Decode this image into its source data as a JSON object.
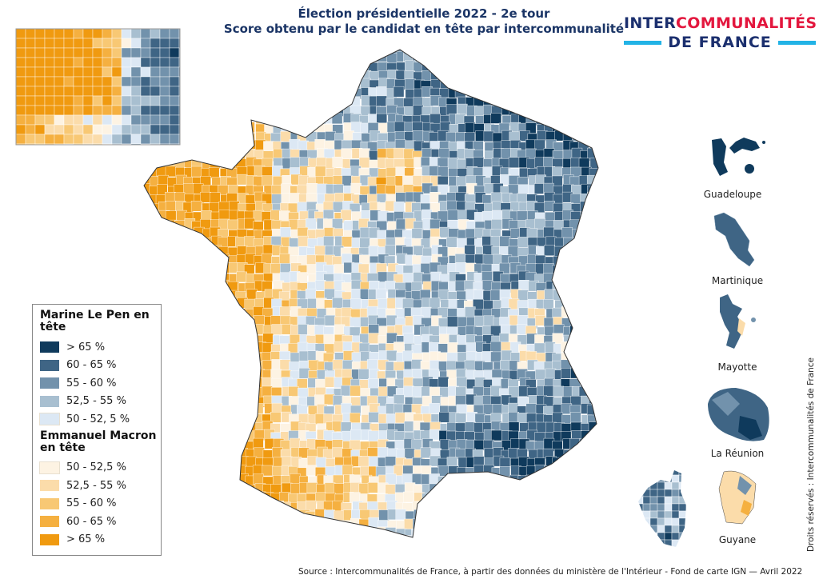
{
  "title": {
    "line1": "Élection présidentielle 2022 - 2e tour",
    "line2": "Score obtenu par le candidat en tête par intercommunalité"
  },
  "logo": {
    "part1": "INTER",
    "part2": "COMMUNALITÉS",
    "line2": "DE FRANCE",
    "colors": {
      "navy": "#1b2f6e",
      "red": "#e3173e",
      "cyan": "#22b3e6"
    }
  },
  "legend": {
    "lepen_title": "Marine Le Pen en tête",
    "lepen_items": [
      {
        "label": "> 65 %",
        "color": "#0f3a5c"
      },
      {
        "label": "60 - 65 %",
        "color": "#3f6585"
      },
      {
        "label": "55 - 60 %",
        "color": "#7292ac"
      },
      {
        "label": "52,5 - 55 %",
        "color": "#a8bfd0"
      },
      {
        "label": "50 - 52, 5 %",
        "color": "#dce8f4"
      }
    ],
    "macron_title": "Emmanuel Macron en tête",
    "macron_items": [
      {
        "label": "50 - 52,5 %",
        "color": "#fdf3e3"
      },
      {
        "label": "52,5 - 55 %",
        "color": "#fbdcaa"
      },
      {
        "label": "55 - 60 %",
        "color": "#f8c874"
      },
      {
        "label": "60 - 65 %",
        "color": "#f5b040"
      },
      {
        "label": "> 65 %",
        "color": "#f09a10"
      }
    ]
  },
  "insets": {
    "guadeloupe": "Guadeloupe",
    "martinique": "Martinique",
    "mayotte": "Mayotte",
    "reunion": "La Réunion",
    "guyane": "Guyane"
  },
  "source": "Source : Intercommunalités de France,  à partir des données du ministère de l'Intérieur - Fond de carte IGN  — Avril 2022",
  "rights": "Droits réservés : Intercommunalités de France"
}
